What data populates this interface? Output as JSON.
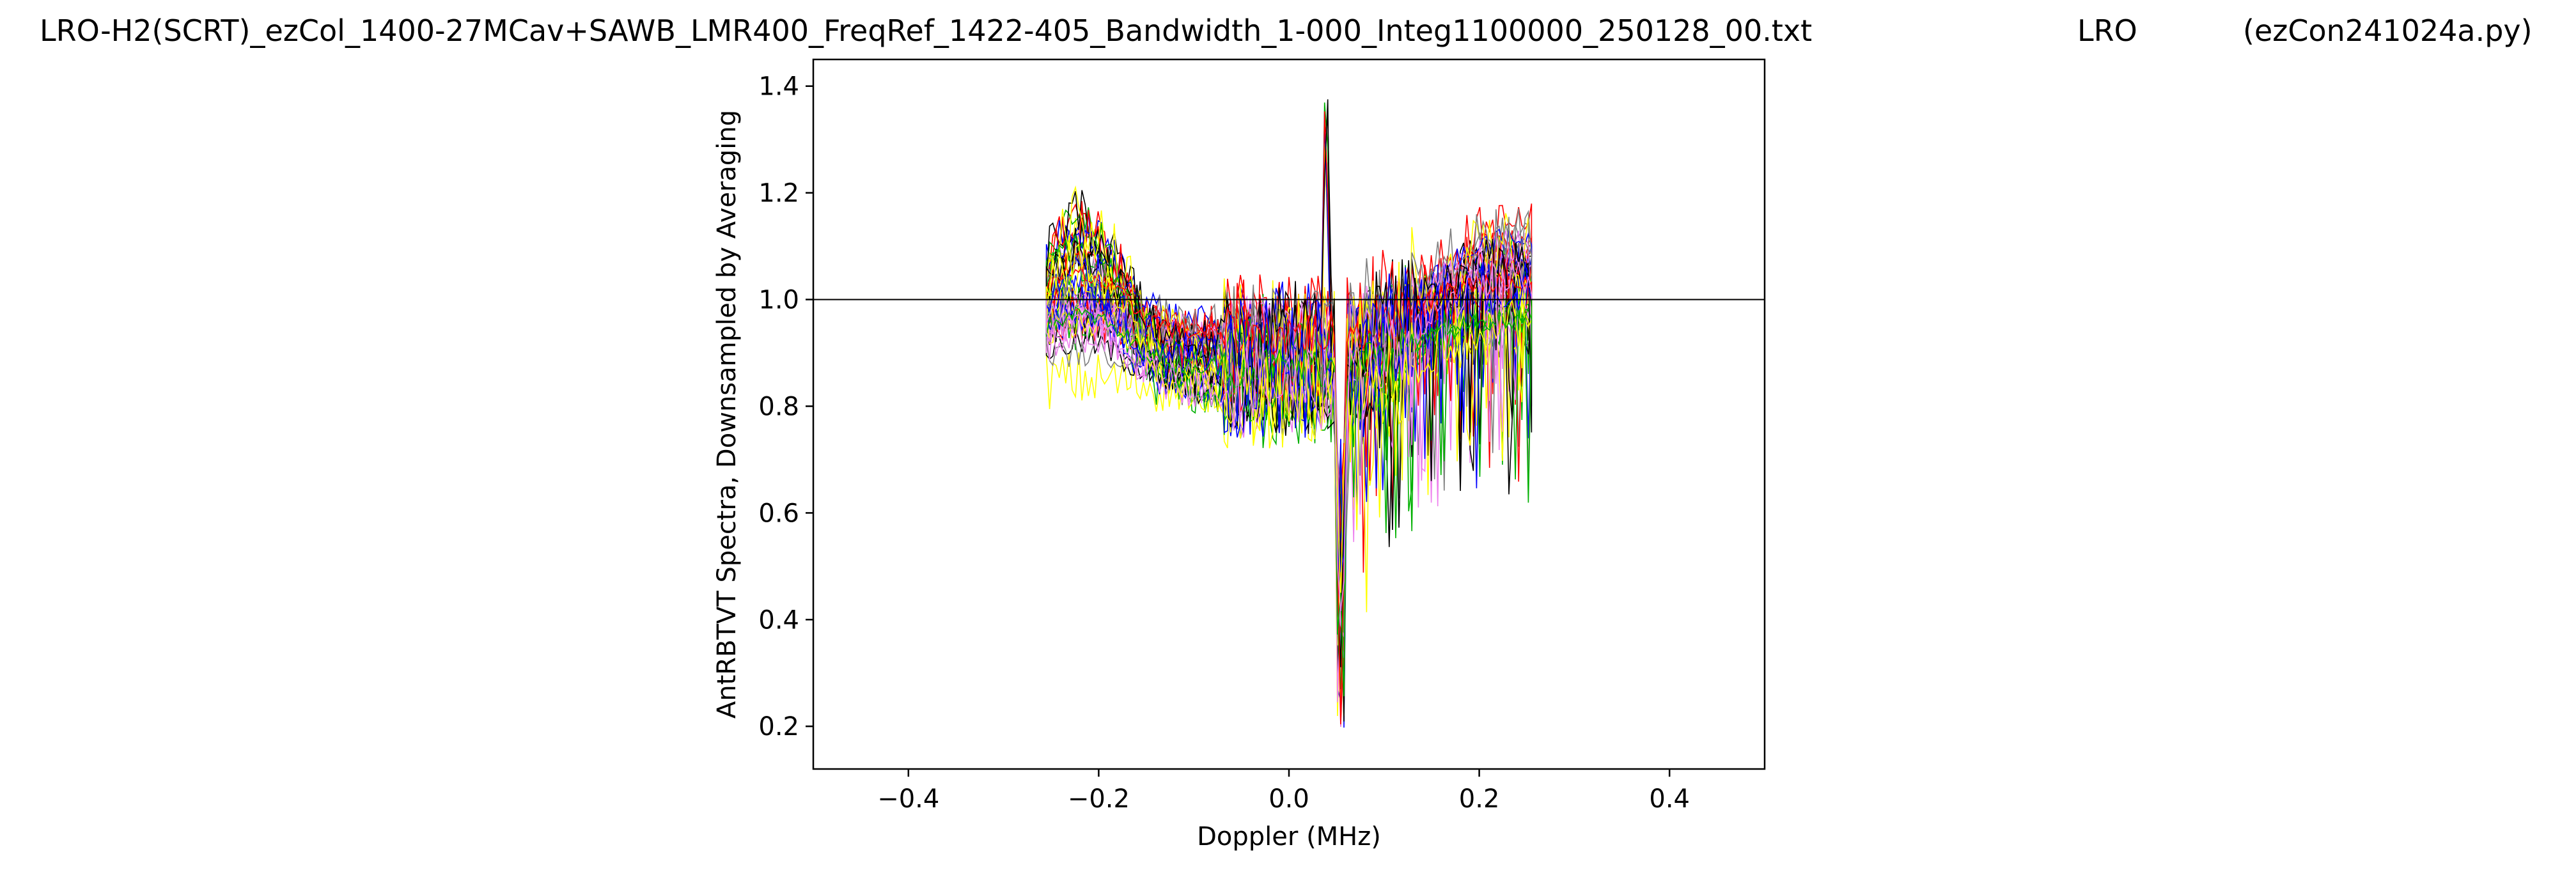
{
  "header": {
    "filename": "LRO-H2(SCRT)_ezCol_1400-27MCav+SAWB_LMR400_FreqRef_1422-405_Bandwidth_1-000_Integ1100000_250128_00.txt",
    "site": "LRO",
    "program": "(ezCon241024a.py)"
  },
  "chart_data": {
    "type": "line",
    "title": "",
    "xlabel": "Doppler (MHz)",
    "ylabel": "AntRBTVT Spectra, Downsampled by Averaging",
    "xlim": [
      -0.5,
      0.5
    ],
    "ylim": [
      0.12,
      1.45
    ],
    "xticks": [
      -0.4,
      -0.2,
      0.0,
      0.2,
      0.4
    ],
    "xtick_labels": [
      "−0.4",
      "−0.2",
      "0.0",
      "0.2",
      "0.4"
    ],
    "yticks": [
      0.2,
      0.4,
      0.6,
      0.8,
      1.0,
      1.2,
      1.4
    ],
    "ytick_labels": [
      "0.2",
      "0.4",
      "0.6",
      "0.8",
      "1.0",
      "1.2",
      "1.4"
    ],
    "grid": false,
    "legend": "none",
    "series_colors": [
      "#000000",
      "#ff0000",
      "#0000ff",
      "#ffff00",
      "#00b000",
      "#ee82ee",
      "#808080"
    ],
    "baseline": {
      "y": 1.0,
      "x_range": [
        -0.5,
        0.5
      ]
    },
    "data_x_range": [
      -0.255,
      0.255
    ],
    "spectra_count": 48,
    "features": {
      "left_edge_x": -0.255,
      "right_edge_x": 0.255,
      "low_band": {
        "x_start": -0.25,
        "x_end": 0.05,
        "level_min": 0.82,
        "level_max": 0.95
      },
      "left_hump": {
        "x_center": -0.22,
        "peak": 1.2
      },
      "right_rise": {
        "x_start": 0.06,
        "x_end": 0.25,
        "peak": 1.22
      },
      "center_spike": {
        "x": 0.04,
        "peak": 1.4
      },
      "center_dip": {
        "x": 0.055,
        "min": 0.19
      }
    }
  }
}
